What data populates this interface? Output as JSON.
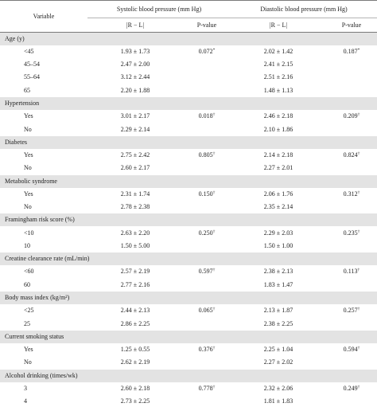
{
  "header": {
    "variable": "Variable",
    "systolic": "Systolic blood pressure (mm Hg)",
    "diastolic": "Diastolic blood pressure (mm Hg)",
    "abs_diff": "|R − L|",
    "p_value": "P-value"
  },
  "groups": [
    {
      "title": "Age (y)",
      "rows": [
        {
          "label": "<45",
          "sys": "1.93 ± 1.73",
          "sys_p": "0.072",
          "sys_sup": "*",
          "dia": "2.02 ± 1.42",
          "dia_p": "0.187",
          "dia_sup": "*"
        },
        {
          "label": "45–54",
          "sys": "2.47 ± 2.00",
          "sys_p": "",
          "sys_sup": "",
          "dia": "2.41 ± 2.15",
          "dia_p": "",
          "dia_sup": ""
        },
        {
          "label": "55–64",
          "sys": "3.12 ± 2.44",
          "sys_p": "",
          "sys_sup": "",
          "dia": "2.51 ± 2.16",
          "dia_p": "",
          "dia_sup": ""
        },
        {
          "label": "65",
          "sys": "2.20 ± 1.88",
          "sys_p": "",
          "sys_sup": "",
          "dia": "1.48 ± 1.13",
          "dia_p": "",
          "dia_sup": ""
        }
      ]
    },
    {
      "title": "Hypertension",
      "rows": [
        {
          "label": "Yes",
          "sys": "3.01 ± 2.17",
          "sys_p": "0.018",
          "sys_sup": "†",
          "dia": "2.46 ± 2.18",
          "dia_p": "0.209",
          "dia_sup": "†"
        },
        {
          "label": "No",
          "sys": "2.29 ± 2.14",
          "sys_p": "",
          "sys_sup": "",
          "dia": "2.10 ± 1.86",
          "dia_p": "",
          "dia_sup": ""
        }
      ]
    },
    {
      "title": "Diabetes",
      "rows": [
        {
          "label": "Yes",
          "sys": "2.75 ± 2.42",
          "sys_p": "0.805",
          "sys_sup": "†",
          "dia": "2.14 ± 2.18",
          "dia_p": "0.824",
          "dia_sup": "†"
        },
        {
          "label": "No",
          "sys": "2.60 ± 2.17",
          "sys_p": "",
          "sys_sup": "",
          "dia": "2.27 ± 2.01",
          "dia_p": "",
          "dia_sup": ""
        }
      ]
    },
    {
      "title": "Metabolic syndrome",
      "rows": [
        {
          "label": "Yes",
          "sys": "2.31 ± 1.74",
          "sys_p": "0.150",
          "sys_sup": "†",
          "dia": "2.06 ± 1.76",
          "dia_p": "0.312",
          "dia_sup": "†"
        },
        {
          "label": "No",
          "sys": "2.78 ± 2.38",
          "sys_p": "",
          "sys_sup": "",
          "dia": "2.35 ± 2.14",
          "dia_p": "",
          "dia_sup": ""
        }
      ]
    },
    {
      "title": "Framingham risk score (%)",
      "rows": [
        {
          "label": "<10",
          "sys": "2.63 ± 2.20",
          "sys_p": "0.250",
          "sys_sup": "†",
          "dia": "2.29 ± 2.03",
          "dia_p": "0.235",
          "dia_sup": "†"
        },
        {
          "label": "10",
          "sys": "1.50 ± 5.00",
          "sys_p": "",
          "sys_sup": "",
          "dia": "1.50 ± 1.00",
          "dia_p": "",
          "dia_sup": ""
        }
      ]
    },
    {
      "title": "Creatine clearance rate (mL/min)",
      "rows": [
        {
          "label": "<60",
          "sys": "2.57 ± 2.19",
          "sys_p": "0.597",
          "sys_sup": "†",
          "dia": "2.38 ± 2.13",
          "dia_p": "0.113",
          "dia_sup": "†"
        },
        {
          "label": "60",
          "sys": "2.77 ± 2.16",
          "sys_p": "",
          "sys_sup": "",
          "dia": "1.83 ± 1.47",
          "dia_p": "",
          "dia_sup": ""
        }
      ]
    },
    {
      "title": "Body mass index (kg/m²)",
      "rows": [
        {
          "label": "<25",
          "sys": "2.44 ± 2.13",
          "sys_p": "0.065",
          "sys_sup": "†",
          "dia": "2.13 ± 1.87",
          "dia_p": "0.257",
          "dia_sup": "†"
        },
        {
          "label": "25",
          "sys": "2.86 ± 2.25",
          "sys_p": "",
          "sys_sup": "",
          "dia": "2.38 ± 2.25",
          "dia_p": "",
          "dia_sup": ""
        }
      ]
    },
    {
      "title": "Current smoking status",
      "rows": [
        {
          "label": "Yes",
          "sys": "1.25 ± 0.55",
          "sys_p": "0.376",
          "sys_sup": "†",
          "dia": "2.25 ± 1.04",
          "dia_p": "0.594",
          "dia_sup": "†"
        },
        {
          "label": "No",
          "sys": "2.62 ± 2.19",
          "sys_p": "",
          "sys_sup": "",
          "dia": "2.27 ± 2.02",
          "dia_p": "",
          "dia_sup": ""
        }
      ]
    },
    {
      "title": "Alcohol drinking (times/wk)",
      "rows": [
        {
          "label": "3",
          "sys": "2.60 ± 2.18",
          "sys_p": "0.778",
          "sys_sup": "†",
          "dia": "2.32 ± 2.06",
          "dia_p": "0.249",
          "dia_sup": "†"
        },
        {
          "label": "4",
          "sys": "2.73 ± 2.25",
          "sys_p": "",
          "sys_sup": "",
          "dia": "1.81 ± 1.83",
          "dia_p": "",
          "dia_sup": ""
        }
      ]
    }
  ]
}
